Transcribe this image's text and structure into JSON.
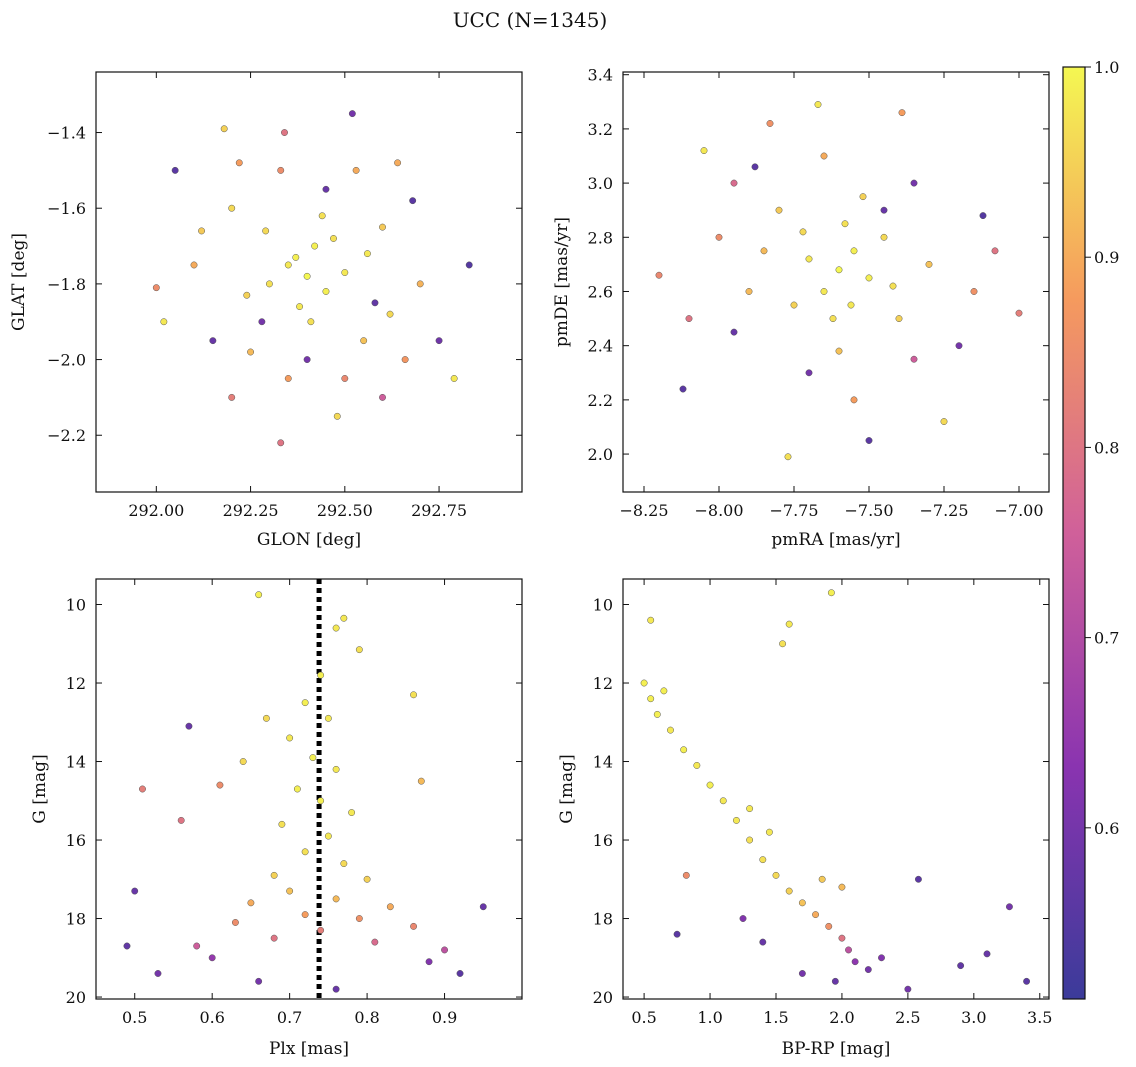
{
  "figure": {
    "title": "UCC (N=1345)"
  },
  "colors": {
    "cmap_low": "#3b3b9a",
    "cmap_mid": "#d0609a",
    "cmap_high": "#f4f752",
    "edge": "#555555",
    "reference_line": "#000000"
  },
  "colorbar": {
    "range": [
      0.51,
      1.0
    ],
    "ticks": [
      0.6,
      0.7,
      0.8,
      0.9,
      1.0
    ],
    "tick_labels": [
      "0.6",
      "0.7",
      "0.8",
      "0.9",
      "1.0"
    ]
  },
  "chart_data": [
    {
      "id": "glon-glat",
      "type": "scatter",
      "xlabel": "GLON [deg]",
      "ylabel": "GLAT [deg]",
      "xlim": [
        291.84,
        292.97
      ],
      "ylim": [
        -2.35,
        -1.24
      ],
      "xticks": [
        292.0,
        292.25,
        292.5,
        292.75
      ],
      "xtick_labels": [
        "292.00",
        "292.25",
        "292.50",
        "292.75"
      ],
      "yticks": [
        -1.4,
        -1.6,
        -1.8,
        -2.0,
        -2.2
      ],
      "ytick_labels": [
        "−1.4",
        "−1.6",
        "−1.8",
        "−2.0",
        "−2.2"
      ],
      "points": [
        [
          292.4,
          -1.78,
          1.0
        ],
        [
          292.35,
          -1.75,
          0.98
        ],
        [
          292.45,
          -1.82,
          0.99
        ],
        [
          292.3,
          -1.8,
          0.97
        ],
        [
          292.5,
          -1.77,
          0.98
        ],
        [
          292.42,
          -1.7,
          0.99
        ],
        [
          292.38,
          -1.86,
          0.98
        ],
        [
          292.2,
          -1.6,
          0.96
        ],
        [
          292.6,
          -1.65,
          0.94
        ],
        [
          292.55,
          -1.95,
          0.93
        ],
        [
          292.25,
          -1.98,
          0.92
        ],
        [
          292.1,
          -1.75,
          0.9
        ],
        [
          292.7,
          -1.8,
          0.91
        ],
        [
          292.33,
          -1.5,
          0.85
        ],
        [
          292.5,
          -2.05,
          0.84
        ],
        [
          292.52,
          -1.35,
          0.6
        ],
        [
          292.18,
          -1.39,
          0.95
        ],
        [
          292.33,
          -2.22,
          0.8
        ],
        [
          292.0,
          -1.81,
          0.85
        ],
        [
          292.02,
          -1.9,
          0.98
        ],
        [
          292.83,
          -1.75,
          0.55
        ],
        [
          292.79,
          -2.05,
          0.98
        ],
        [
          292.34,
          -1.4,
          0.8
        ],
        [
          292.64,
          -1.48,
          0.9
        ],
        [
          292.2,
          -2.1,
          0.82
        ],
        [
          292.6,
          -2.1,
          0.75
        ],
        [
          292.45,
          -1.55,
          0.58
        ],
        [
          292.28,
          -1.9,
          0.6
        ],
        [
          292.58,
          -1.85,
          0.57
        ],
        [
          292.15,
          -1.95,
          0.58
        ],
        [
          292.68,
          -1.58,
          0.56
        ],
        [
          292.4,
          -2.0,
          0.6
        ],
        [
          292.05,
          -1.5,
          0.56
        ],
        [
          292.75,
          -1.95,
          0.59
        ],
        [
          292.47,
          -1.68,
          0.97
        ],
        [
          292.37,
          -1.73,
          0.99
        ],
        [
          292.41,
          -1.9,
          0.97
        ],
        [
          292.29,
          -1.66,
          0.96
        ],
        [
          292.56,
          -1.72,
          0.98
        ],
        [
          292.44,
          -1.62,
          0.97
        ],
        [
          292.24,
          -1.83,
          0.95
        ],
        [
          292.62,
          -1.88,
          0.96
        ],
        [
          292.48,
          -2.15,
          0.96
        ],
        [
          292.12,
          -1.66,
          0.94
        ],
        [
          292.35,
          -2.05,
          0.88
        ],
        [
          292.66,
          -2.0,
          0.87
        ],
        [
          292.22,
          -1.48,
          0.88
        ],
        [
          292.53,
          -1.5,
          0.9
        ]
      ]
    },
    {
      "id": "pmra-pmde",
      "type": "scatter",
      "xlabel": "pmRA [mas/yr]",
      "ylabel": "pmDE [mas/yr]",
      "xlim": [
        -8.32,
        -6.9
      ],
      "ylim": [
        1.86,
        3.41
      ],
      "xticks": [
        -8.25,
        -8.0,
        -7.75,
        -7.5,
        -7.25,
        -7.0
      ],
      "xtick_labels": [
        "−8.25",
        "−8.00",
        "−7.75",
        "−7.50",
        "−7.25",
        "−7.00"
      ],
      "yticks": [
        2.0,
        2.2,
        2.4,
        2.6,
        2.8,
        3.0,
        3.2,
        3.4
      ],
      "ytick_labels": [
        "2.0",
        "2.2",
        "2.4",
        "2.6",
        "2.8",
        "3.0",
        "3.2",
        "3.4"
      ],
      "points": [
        [
          -7.6,
          2.68,
          1.0
        ],
        [
          -7.55,
          2.75,
          0.99
        ],
        [
          -7.65,
          2.6,
          0.98
        ],
        [
          -7.5,
          2.65,
          0.99
        ],
        [
          -7.7,
          2.72,
          0.98
        ],
        [
          -7.58,
          2.85,
          0.97
        ],
        [
          -7.62,
          2.5,
          0.97
        ],
        [
          -7.45,
          2.8,
          0.96
        ],
        [
          -7.75,
          2.55,
          0.95
        ],
        [
          -7.4,
          2.5,
          0.95
        ],
        [
          -7.8,
          2.9,
          0.94
        ],
        [
          -7.3,
          2.7,
          0.93
        ],
        [
          -7.9,
          2.6,
          0.92
        ],
        [
          -7.67,
          3.29,
          0.98
        ],
        [
          -7.77,
          1.99,
          0.97
        ],
        [
          -8.05,
          3.12,
          0.98
        ],
        [
          -7.39,
          3.26,
          0.88
        ],
        [
          -7.83,
          3.22,
          0.86
        ],
        [
          -8.2,
          2.66,
          0.84
        ],
        [
          -7.0,
          2.52,
          0.82
        ],
        [
          -7.25,
          2.12,
          0.96
        ],
        [
          -7.5,
          2.05,
          0.56
        ],
        [
          -8.12,
          2.24,
          0.56
        ],
        [
          -7.12,
          2.88,
          0.55
        ],
        [
          -7.88,
          3.06,
          0.56
        ],
        [
          -7.45,
          2.9,
          0.58
        ],
        [
          -7.7,
          2.3,
          0.6
        ],
        [
          -7.95,
          2.45,
          0.58
        ],
        [
          -7.2,
          2.4,
          0.6
        ],
        [
          -7.35,
          3.0,
          0.6
        ],
        [
          -7.85,
          2.75,
          0.92
        ],
        [
          -7.52,
          2.95,
          0.95
        ],
        [
          -7.6,
          2.38,
          0.93
        ],
        [
          -7.42,
          2.62,
          0.97
        ],
        [
          -7.72,
          2.82,
          0.96
        ],
        [
          -7.56,
          2.55,
          0.98
        ],
        [
          -8.0,
          2.8,
          0.85
        ],
        [
          -7.15,
          2.6,
          0.86
        ],
        [
          -7.65,
          3.1,
          0.9
        ],
        [
          -7.55,
          2.2,
          0.88
        ],
        [
          -8.1,
          2.5,
          0.8
        ],
        [
          -7.08,
          2.75,
          0.8
        ],
        [
          -7.35,
          2.35,
          0.75
        ],
        [
          -7.95,
          3.0,
          0.78
        ]
      ]
    },
    {
      "id": "plx-g",
      "type": "scatter",
      "xlabel": "Plx [mas]",
      "ylabel": "G [mag]",
      "xlim": [
        0.45,
        1.0
      ],
      "ylim": [
        20.05,
        9.35
      ],
      "y_inverted": true,
      "xticks": [
        0.5,
        0.6,
        0.7,
        0.8,
        0.9
      ],
      "xtick_labels": [
        "0.5",
        "0.6",
        "0.7",
        "0.8",
        "0.9"
      ],
      "yticks": [
        10,
        12,
        14,
        16,
        18,
        20
      ],
      "ytick_labels": [
        "10",
        "12",
        "14",
        "16",
        "18",
        "20"
      ],
      "reference_line": {
        "x": 0.738,
        "style": "dotted"
      },
      "points": [
        [
          0.66,
          9.75,
          0.99
        ],
        [
          0.77,
          10.35,
          0.98
        ],
        [
          0.76,
          10.6,
          0.98
        ],
        [
          0.79,
          11.15,
          0.97
        ],
        [
          0.74,
          11.8,
          0.99
        ],
        [
          0.72,
          12.5,
          0.99
        ],
        [
          0.75,
          12.9,
          0.98
        ],
        [
          0.7,
          13.4,
          0.98
        ],
        [
          0.73,
          13.9,
          0.99
        ],
        [
          0.76,
          14.2,
          0.98
        ],
        [
          0.71,
          14.7,
          0.99
        ],
        [
          0.74,
          15.0,
          0.99
        ],
        [
          0.78,
          15.3,
          0.98
        ],
        [
          0.69,
          15.6,
          0.97
        ],
        [
          0.75,
          15.9,
          0.98
        ],
        [
          0.72,
          16.3,
          0.97
        ],
        [
          0.77,
          16.6,
          0.96
        ],
        [
          0.68,
          16.9,
          0.95
        ],
        [
          0.8,
          17.0,
          0.95
        ],
        [
          0.7,
          17.3,
          0.93
        ],
        [
          0.76,
          17.5,
          0.92
        ],
        [
          0.65,
          17.6,
          0.9
        ],
        [
          0.83,
          17.7,
          0.9
        ],
        [
          0.72,
          17.9,
          0.88
        ],
        [
          0.79,
          18.0,
          0.86
        ],
        [
          0.63,
          18.1,
          0.85
        ],
        [
          0.86,
          18.2,
          0.84
        ],
        [
          0.74,
          18.3,
          0.82
        ],
        [
          0.68,
          18.5,
          0.8
        ],
        [
          0.81,
          18.6,
          0.78
        ],
        [
          0.58,
          18.7,
          0.75
        ],
        [
          0.9,
          18.8,
          0.72
        ],
        [
          0.6,
          19.0,
          0.65
        ],
        [
          0.88,
          19.1,
          0.62
        ],
        [
          0.53,
          19.4,
          0.6
        ],
        [
          0.95,
          17.7,
          0.58
        ],
        [
          0.49,
          18.7,
          0.57
        ],
        [
          0.57,
          13.1,
          0.58
        ],
        [
          0.61,
          14.6,
          0.85
        ],
        [
          0.51,
          14.7,
          0.82
        ],
        [
          0.56,
          15.5,
          0.8
        ],
        [
          0.5,
          17.3,
          0.58
        ],
        [
          0.92,
          19.4,
          0.56
        ],
        [
          0.66,
          19.6,
          0.6
        ],
        [
          0.76,
          19.8,
          0.58
        ],
        [
          0.87,
          14.5,
          0.92
        ],
        [
          0.86,
          12.3,
          0.97
        ],
        [
          0.64,
          14.0,
          0.96
        ],
        [
          0.67,
          12.9,
          0.96
        ]
      ]
    },
    {
      "id": "bprp-g",
      "type": "scatter",
      "xlabel": "BP-RP [mag]",
      "ylabel": "G [mag]",
      "xlim": [
        0.34,
        3.57
      ],
      "ylim": [
        20.05,
        9.35
      ],
      "y_inverted": true,
      "xticks": [
        0.5,
        1.0,
        1.5,
        2.0,
        2.5,
        3.0,
        3.5
      ],
      "xtick_labels": [
        "0.5",
        "1.0",
        "1.5",
        "2.0",
        "2.5",
        "3.0",
        "3.5"
      ],
      "yticks": [
        10,
        12,
        14,
        16,
        18,
        20
      ],
      "ytick_labels": [
        "10",
        "12",
        "14",
        "16",
        "18",
        "20"
      ],
      "points": [
        [
          0.5,
          12.0,
          0.99
        ],
        [
          0.55,
          12.4,
          0.99
        ],
        [
          0.6,
          12.8,
          0.99
        ],
        [
          0.7,
          13.2,
          0.98
        ],
        [
          0.8,
          13.7,
          0.99
        ],
        [
          0.9,
          14.1,
          0.98
        ],
        [
          1.0,
          14.6,
          0.99
        ],
        [
          1.1,
          15.0,
          0.98
        ],
        [
          1.2,
          15.5,
          0.98
        ],
        [
          1.3,
          16.0,
          0.97
        ],
        [
          1.4,
          16.5,
          0.97
        ],
        [
          1.5,
          16.9,
          0.96
        ],
        [
          1.6,
          17.3,
          0.95
        ],
        [
          1.7,
          17.6,
          0.93
        ],
        [
          1.8,
          17.9,
          0.9
        ],
        [
          1.9,
          18.2,
          0.86
        ],
        [
          2.0,
          18.5,
          0.8
        ],
        [
          2.05,
          18.8,
          0.72
        ],
        [
          2.1,
          19.1,
          0.64
        ],
        [
          2.2,
          19.3,
          0.6
        ],
        [
          2.3,
          19.0,
          0.62
        ],
        [
          1.92,
          9.7,
          0.99
        ],
        [
          1.6,
          10.5,
          0.98
        ],
        [
          1.55,
          11.0,
          0.97
        ],
        [
          0.55,
          10.4,
          0.98
        ],
        [
          0.82,
          16.9,
          0.85
        ],
        [
          0.75,
          18.4,
          0.56
        ],
        [
          2.58,
          17.0,
          0.56
        ],
        [
          3.27,
          17.7,
          0.6
        ],
        [
          3.4,
          19.6,
          0.56
        ],
        [
          3.1,
          18.9,
          0.58
        ],
        [
          2.9,
          19.2,
          0.57
        ],
        [
          2.5,
          19.8,
          0.6
        ],
        [
          1.25,
          18.0,
          0.62
        ],
        [
          1.4,
          18.6,
          0.58
        ],
        [
          1.7,
          19.4,
          0.6
        ],
        [
          1.95,
          19.6,
          0.58
        ],
        [
          2.0,
          17.2,
          0.92
        ],
        [
          1.85,
          17.0,
          0.94
        ],
        [
          1.3,
          15.2,
          0.98
        ],
        [
          1.45,
          15.8,
          0.98
        ],
        [
          0.65,
          12.2,
          0.99
        ]
      ]
    }
  ]
}
